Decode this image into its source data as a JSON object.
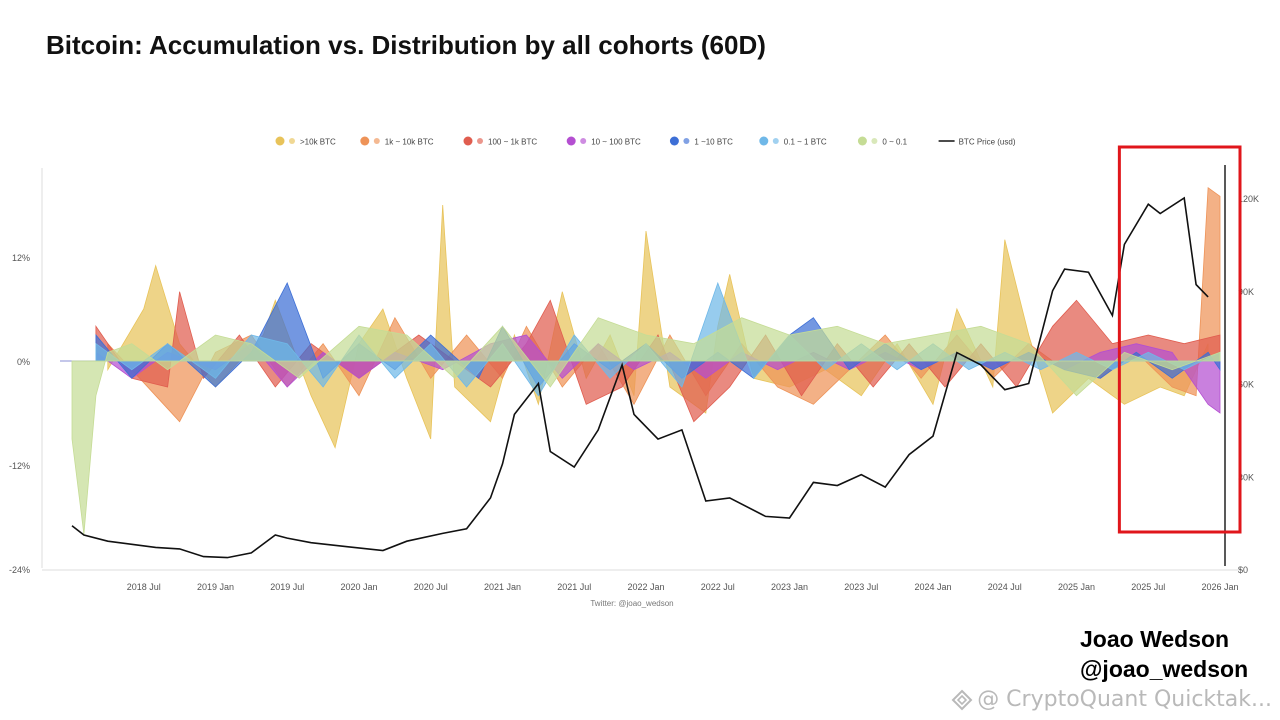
{
  "title": "Bitcoin: Accumulation vs. Distribution by all cohorts (60D)",
  "author": {
    "name": "Joao Wedson",
    "handle": "@joao_wedson"
  },
  "watermark": {
    "text": "@ CryptoQuant Quicktak...",
    "icon": "diamond-logo-icon"
  },
  "source_label": "Twitter: @joao_wedson",
  "highlight": {
    "color": "#e0161b",
    "from": "2025-05",
    "to": "2026-01"
  },
  "chart_data": {
    "type": "area",
    "x_ticks": [
      "2018 Jul",
      "2019 Jan",
      "2019 Jul",
      "2020 Jan",
      "2020 Jul",
      "2021 Jan",
      "2021 Jul",
      "2022 Jan",
      "2022 Jul",
      "2023 Jan",
      "2023 Jul",
      "2024 Jan",
      "2024 Jul",
      "2025 Jan",
      "2025 Jul",
      "2026 Jan"
    ],
    "x_range": [
      "2017-12",
      "2026-02"
    ],
    "y_left": {
      "ticks": [
        "12%",
        "0%",
        "-12%",
        "-24%"
      ],
      "values": [
        12,
        0,
        -12,
        -24
      ],
      "range": [
        -24,
        24
      ]
    },
    "y_right": {
      "ticks": [
        "120K",
        "90K",
        "60K",
        "30K",
        "$0"
      ],
      "values": [
        120000,
        90000,
        60000,
        30000,
        0
      ],
      "range": [
        0,
        135000
      ]
    },
    "legend": [
      {
        "name": ">10k BTC",
        "color": "#e8c35a",
        "icon": "whale-icon"
      },
      {
        "name": "1k ~ 10k BTC",
        "color": "#ee9358",
        "icon": "shark-icon"
      },
      {
        "name": "100 ~ 1k BTC",
        "color": "#e05d4f",
        "icon": "fish-icon"
      },
      {
        "name": "10 ~ 100 BTC",
        "color": "#b44fd1",
        "icon": "octopus-icon"
      },
      {
        "name": "1 ~10 BTC",
        "color": "#3d6fd6",
        "icon": "crab-icon"
      },
      {
        "name": "0.1 ~ 1 BTC",
        "color": "#6fb8e8",
        "icon": "shrimp-icon"
      },
      {
        "name": "0 ~ 0.1",
        "color": "#c5dc95",
        "icon": "plankton-icon"
      },
      {
        "name": "BTC Price (usd)",
        "color": "#111111",
        "icon": "line-icon"
      }
    ],
    "series": [
      {
        "name": ">10k BTC",
        "x": [
          "2018-04",
          "2018-07",
          "2018-08",
          "2018-10",
          "2019-01",
          "2019-05",
          "2019-06",
          "2019-09",
          "2019-11",
          "2020-01",
          "2020-03",
          "2020-05",
          "2020-07",
          "2020-08",
          "2020-09",
          "2020-12",
          "2021-02",
          "2021-04",
          "2021-06",
          "2021-08",
          "2021-10",
          "2021-12",
          "2022-01",
          "2022-03",
          "2022-06",
          "2022-07",
          "2022-08",
          "2022-10",
          "2023-01",
          "2023-04",
          "2023-07",
          "2023-10",
          "2024-01",
          "2024-03",
          "2024-06",
          "2024-07",
          "2024-09",
          "2024-11",
          "2025-02",
          "2025-05",
          "2025-08",
          "2025-10",
          "2025-12"
        ],
        "y": [
          -1,
          6,
          11,
          2,
          -3,
          3,
          7,
          -4,
          -10,
          2,
          6,
          -2,
          -9,
          18,
          -3,
          -7,
          3,
          -5,
          8,
          -2,
          3,
          -4,
          15,
          -3,
          -6,
          4,
          10,
          -2,
          -3,
          -1,
          -4,
          2,
          -5,
          6,
          -3,
          14,
          3,
          -6,
          -2,
          -5,
          -3,
          -4,
          2
        ]
      },
      {
        "name": "1k ~ 10k BTC",
        "x": [
          "2018-04",
          "2018-08",
          "2018-10",
          "2019-01",
          "2019-04",
          "2019-07",
          "2019-10",
          "2020-01",
          "2020-04",
          "2020-07",
          "2020-10",
          "2021-01",
          "2021-03",
          "2021-06",
          "2021-09",
          "2021-12",
          "2022-03",
          "2022-06",
          "2022-09",
          "2022-12",
          "2023-03",
          "2023-06",
          "2023-09",
          "2023-12",
          "2024-03",
          "2024-06",
          "2024-09",
          "2024-12",
          "2025-03",
          "2025-06",
          "2025-09",
          "2025-11",
          "2025-12",
          "2026-01"
        ],
        "y": [
          2,
          -4,
          -7,
          1,
          3,
          -3,
          2,
          -4,
          5,
          -2,
          3,
          -2,
          4,
          -3,
          2,
          -5,
          3,
          -4,
          2,
          -3,
          -5,
          -1,
          3,
          -2,
          3,
          -2,
          2,
          -1,
          -2,
          1,
          -3,
          -4,
          20,
          19
        ]
      },
      {
        "name": "100 ~ 1k BTC",
        "x": [
          "2018-03",
          "2018-06",
          "2018-09",
          "2018-10",
          "2018-12",
          "2019-03",
          "2019-06",
          "2019-09",
          "2020-01",
          "2020-06",
          "2020-12",
          "2021-03",
          "2021-05",
          "2021-08",
          "2021-11",
          "2022-02",
          "2022-05",
          "2022-08",
          "2022-11",
          "2023-02",
          "2023-05",
          "2023-08",
          "2023-11",
          "2024-02",
          "2024-05",
          "2024-08",
          "2024-11",
          "2025-01",
          "2025-04",
          "2025-07",
          "2025-10",
          "2026-01"
        ],
        "y": [
          4,
          -2,
          -3,
          8,
          -2,
          3,
          -3,
          2,
          -2,
          3,
          -3,
          2,
          7,
          -5,
          -3,
          3,
          -7,
          -3,
          3,
          -4,
          2,
          -3,
          2,
          -3,
          2,
          -3,
          4,
          7,
          2,
          3,
          2,
          3
        ]
      },
      {
        "name": "10 ~ 100 BTC",
        "x": [
          "2018-03",
          "2018-06",
          "2018-09",
          "2019-01",
          "2019-04",
          "2019-07",
          "2019-10",
          "2020-01",
          "2020-04",
          "2020-08",
          "2020-12",
          "2021-03",
          "2021-06",
          "2021-09",
          "2021-12",
          "2022-03",
          "2022-06",
          "2022-09",
          "2022-12",
          "2023-03",
          "2023-06",
          "2023-09",
          "2023-12",
          "2024-03",
          "2024-06",
          "2024-09",
          "2024-12",
          "2025-03",
          "2025-06",
          "2025-09",
          "2025-12",
          "2026-01"
        ],
        "y": [
          1,
          -2,
          1,
          -1,
          2,
          -3,
          1,
          -2,
          1,
          -1,
          2,
          3,
          -2,
          2,
          -1,
          1,
          -2,
          1,
          -1,
          1,
          -1,
          1,
          -1,
          1,
          -1,
          1,
          -1,
          1,
          2,
          1,
          -5,
          -6
        ]
      },
      {
        "name": "1 ~10 BTC",
        "x": [
          "2018-03",
          "2018-06",
          "2018-09",
          "2019-01",
          "2019-04",
          "2019-07",
          "2019-10",
          "2020-01",
          "2020-04",
          "2020-07",
          "2020-11",
          "2021-01",
          "2021-04",
          "2021-07",
          "2021-10",
          "2022-01",
          "2022-04",
          "2022-07",
          "2022-10",
          "2023-01",
          "2023-03",
          "2023-06",
          "2023-09",
          "2023-12",
          "2024-03",
          "2024-06",
          "2024-09",
          "2024-12",
          "2025-03",
          "2025-06",
          "2025-09",
          "2025-12",
          "2026-01"
        ],
        "y": [
          3,
          -2,
          2,
          -3,
          1,
          9,
          -2,
          2,
          -1,
          3,
          -2,
          4,
          -3,
          2,
          -1,
          2,
          -2,
          1,
          -2,
          3,
          5,
          -1,
          2,
          -1,
          1,
          -1,
          1,
          -1,
          -2,
          1,
          -2,
          1,
          -1
        ]
      },
      {
        "name": "0.1 ~ 1 BTC",
        "x": [
          "2018-03",
          "2018-06",
          "2018-09",
          "2019-01",
          "2019-04",
          "2019-07",
          "2019-10",
          "2020-01",
          "2020-04",
          "2020-07",
          "2020-10",
          "2021-01",
          "2021-04",
          "2021-07",
          "2021-10",
          "2022-01",
          "2022-04",
          "2022-07",
          "2022-10",
          "2023-01",
          "2023-04",
          "2023-07",
          "2023-10",
          "2024-01",
          "2024-04",
          "2024-07",
          "2024-10",
          "2025-01",
          "2025-04",
          "2025-07",
          "2025-10",
          "2026-01"
        ],
        "y": [
          2,
          -1,
          2,
          -2,
          3,
          2,
          -3,
          3,
          -2,
          2,
          -3,
          2,
          -4,
          3,
          -2,
          2,
          -3,
          9,
          -2,
          3,
          -1,
          2,
          -1,
          2,
          -1,
          1,
          -1,
          1,
          -1,
          1,
          -1,
          1
        ]
      },
      {
        "name": "0 ~ 0.1",
        "x": [
          "2018-01",
          "2018-02",
          "2018-03",
          "2018-04",
          "2018-06",
          "2018-09",
          "2019-01",
          "2019-04",
          "2019-08",
          "2020-01",
          "2020-05",
          "2020-09",
          "2021-01",
          "2021-05",
          "2021-09",
          "2022-01",
          "2022-05",
          "2022-09",
          "2023-01",
          "2023-05",
          "2023-09",
          "2024-01",
          "2024-05",
          "2024-09",
          "2025-01",
          "2025-05",
          "2025-09",
          "2026-01"
        ],
        "y": [
          -9,
          -20,
          -4,
          1,
          2,
          -1,
          3,
          2,
          -2,
          4,
          3,
          -2,
          4,
          -3,
          5,
          3,
          2,
          5,
          3,
          4,
          2,
          3,
          4,
          2,
          -4,
          1,
          -1,
          1
        ]
      },
      {
        "name": "BTC Price (usd)",
        "axis": "right",
        "x": [
          "2018-01",
          "2018-02",
          "2018-04",
          "2018-06",
          "2018-08",
          "2018-10",
          "2018-12",
          "2019-02",
          "2019-04",
          "2019-06",
          "2019-07",
          "2019-09",
          "2019-12",
          "2020-03",
          "2020-05",
          "2020-08",
          "2020-10",
          "2020-12",
          "2021-01",
          "2021-02",
          "2021-04",
          "2021-05",
          "2021-07",
          "2021-09",
          "2021-11",
          "2021-12",
          "2022-02",
          "2022-04",
          "2022-06",
          "2022-08",
          "2022-11",
          "2023-01",
          "2023-03",
          "2023-05",
          "2023-07",
          "2023-09",
          "2023-11",
          "2024-01",
          "2024-03",
          "2024-05",
          "2024-07",
          "2024-09",
          "2024-11",
          "2024-12",
          "2025-02",
          "2025-04",
          "2025-05",
          "2025-07",
          "2025-08",
          "2025-10",
          "2025-11",
          "2025-12"
        ],
        "y": [
          14000,
          11000,
          9000,
          8000,
          7000,
          6500,
          4000,
          3700,
          5200,
          11000,
          10000,
          8500,
          7200,
          6000,
          9000,
          11500,
          13000,
          23000,
          34000,
          50000,
          60000,
          38000,
          33000,
          45000,
          66000,
          50000,
          42000,
          45000,
          22000,
          23000,
          17000,
          16500,
          28000,
          27000,
          30500,
          26500,
          37000,
          43000,
          70000,
          66000,
          58000,
          60000,
          90000,
          97000,
          96000,
          82000,
          105000,
          118000,
          115000,
          120000,
          92000,
          88000
        ]
      }
    ]
  }
}
